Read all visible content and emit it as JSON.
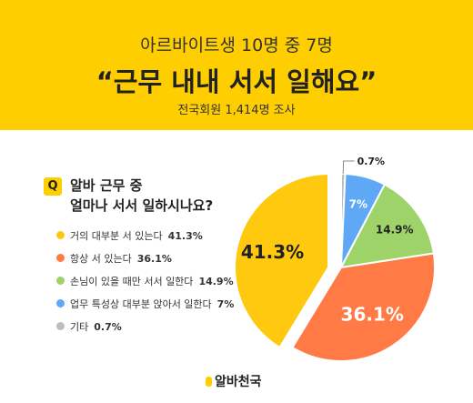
{
  "header": {
    "subtitle": "아르바이트생 10명 중 7명",
    "headline": "“근무 내내 서서 일해요”",
    "source": "전국회원 1,414명 조사"
  },
  "question": {
    "badge": "Q",
    "line1": "알바 근무 중",
    "line2": "얼마나 서서 일하시나요?"
  },
  "chart_data": {
    "type": "pie",
    "slices": [
      {
        "label": "거의 대부분 서 있는다",
        "value": 41.3,
        "display": "41.3%",
        "color": "#FFC90F"
      },
      {
        "label": "항상 서 있는다",
        "value": 36.1,
        "display": "36.1%",
        "color": "#FF7A45"
      },
      {
        "label": "손님이 있을 때만 서서 일한다",
        "value": 14.9,
        "display": "14.9%",
        "color": "#9ED36A"
      },
      {
        "label": "업무 특성상 대부분 앉아서 일한다",
        "value": 7,
        "display": "7%",
        "color": "#5EA8F5"
      },
      {
        "label": "기타",
        "value": 0.7,
        "display": "0.7%",
        "color": "#BDBDBD"
      }
    ]
  },
  "logo": {
    "text": "알바천국"
  }
}
